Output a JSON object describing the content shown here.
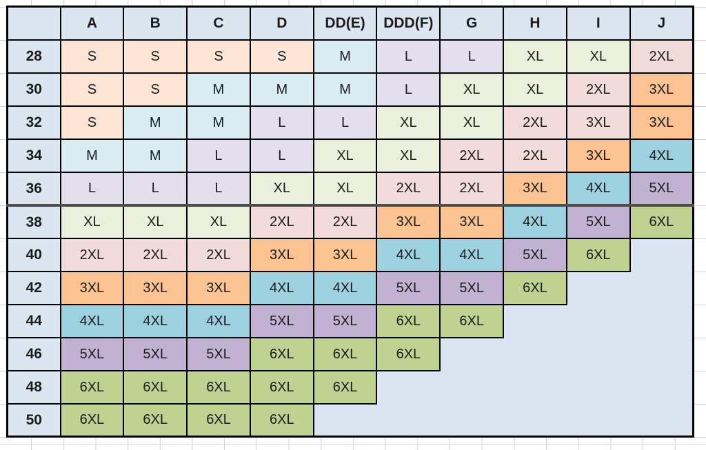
{
  "chart_data": {
    "type": "table",
    "description": "Bra band/cup size to apparel size conversion chart",
    "columns": [
      "A",
      "B",
      "C",
      "D",
      "DD(E)",
      "DDD(F)",
      "G",
      "H",
      "I",
      "J"
    ],
    "row_headers": [
      "28",
      "30",
      "32",
      "34",
      "36",
      "38",
      "40",
      "42",
      "44",
      "46",
      "48",
      "50"
    ],
    "cells": [
      [
        "S",
        "S",
        "S",
        "S",
        "M",
        "L",
        "L",
        "XL",
        "XL",
        "2XL"
      ],
      [
        "S",
        "S",
        "M",
        "M",
        "M",
        "L",
        "XL",
        "XL",
        "2XL",
        "3XL"
      ],
      [
        "S",
        "M",
        "M",
        "L",
        "L",
        "XL",
        "XL",
        "2XL",
        "3XL",
        "3XL"
      ],
      [
        "M",
        "M",
        "L",
        "L",
        "XL",
        "XL",
        "2XL",
        "2XL",
        "3XL",
        "4XL"
      ],
      [
        "L",
        "L",
        "L",
        "XL",
        "XL",
        "2XL",
        "2XL",
        "3XL",
        "4XL",
        "5XL"
      ],
      [
        "XL",
        "XL",
        "XL",
        "2XL",
        "2XL",
        "3XL",
        "3XL",
        "4XL",
        "5XL",
        "6XL"
      ],
      [
        "2XL",
        "2XL",
        "2XL",
        "3XL",
        "3XL",
        "4XL",
        "4XL",
        "5XL",
        "6XL",
        null
      ],
      [
        "3XL",
        "3XL",
        "3XL",
        "4XL",
        "4XL",
        "5XL",
        "5XL",
        "6XL",
        null,
        null
      ],
      [
        "4XL",
        "4XL",
        "4XL",
        "5XL",
        "5XL",
        "6XL",
        "6XL",
        null,
        null,
        null
      ],
      [
        "5XL",
        "5XL",
        "5XL",
        "6XL",
        "6XL",
        "6XL",
        null,
        null,
        null,
        null
      ],
      [
        "6XL",
        "6XL",
        "6XL",
        "6XL",
        "6XL",
        null,
        null,
        null,
        null,
        null
      ],
      [
        "6XL",
        "6XL",
        "6XL",
        "6XL",
        null,
        null,
        null,
        null,
        null,
        null
      ]
    ],
    "palette": {
      "S": "#fce5d4",
      "M": "#d9edf3",
      "L": "#e3dfec",
      "XL": "#eaf0dc",
      "2XL": "#f1dcdb",
      "3XL": "#fbc392",
      "4XL": "#9dd1df",
      "5XL": "#c1b2d2",
      "6XL": "#bfd292"
    },
    "color_overrides": [
      {
        "band": "32",
        "column": "I",
        "color_key": "2XL"
      }
    ],
    "header_bg": "#dce6f1",
    "empty_bg": "#dce6f1",
    "border_color": "#000000",
    "divider_color": "#4e4e4e",
    "divider_above_band": "38",
    "text_color": "#1c1c1c",
    "sheet_gridline_color": "#ccd3e2",
    "corner_label": ""
  }
}
